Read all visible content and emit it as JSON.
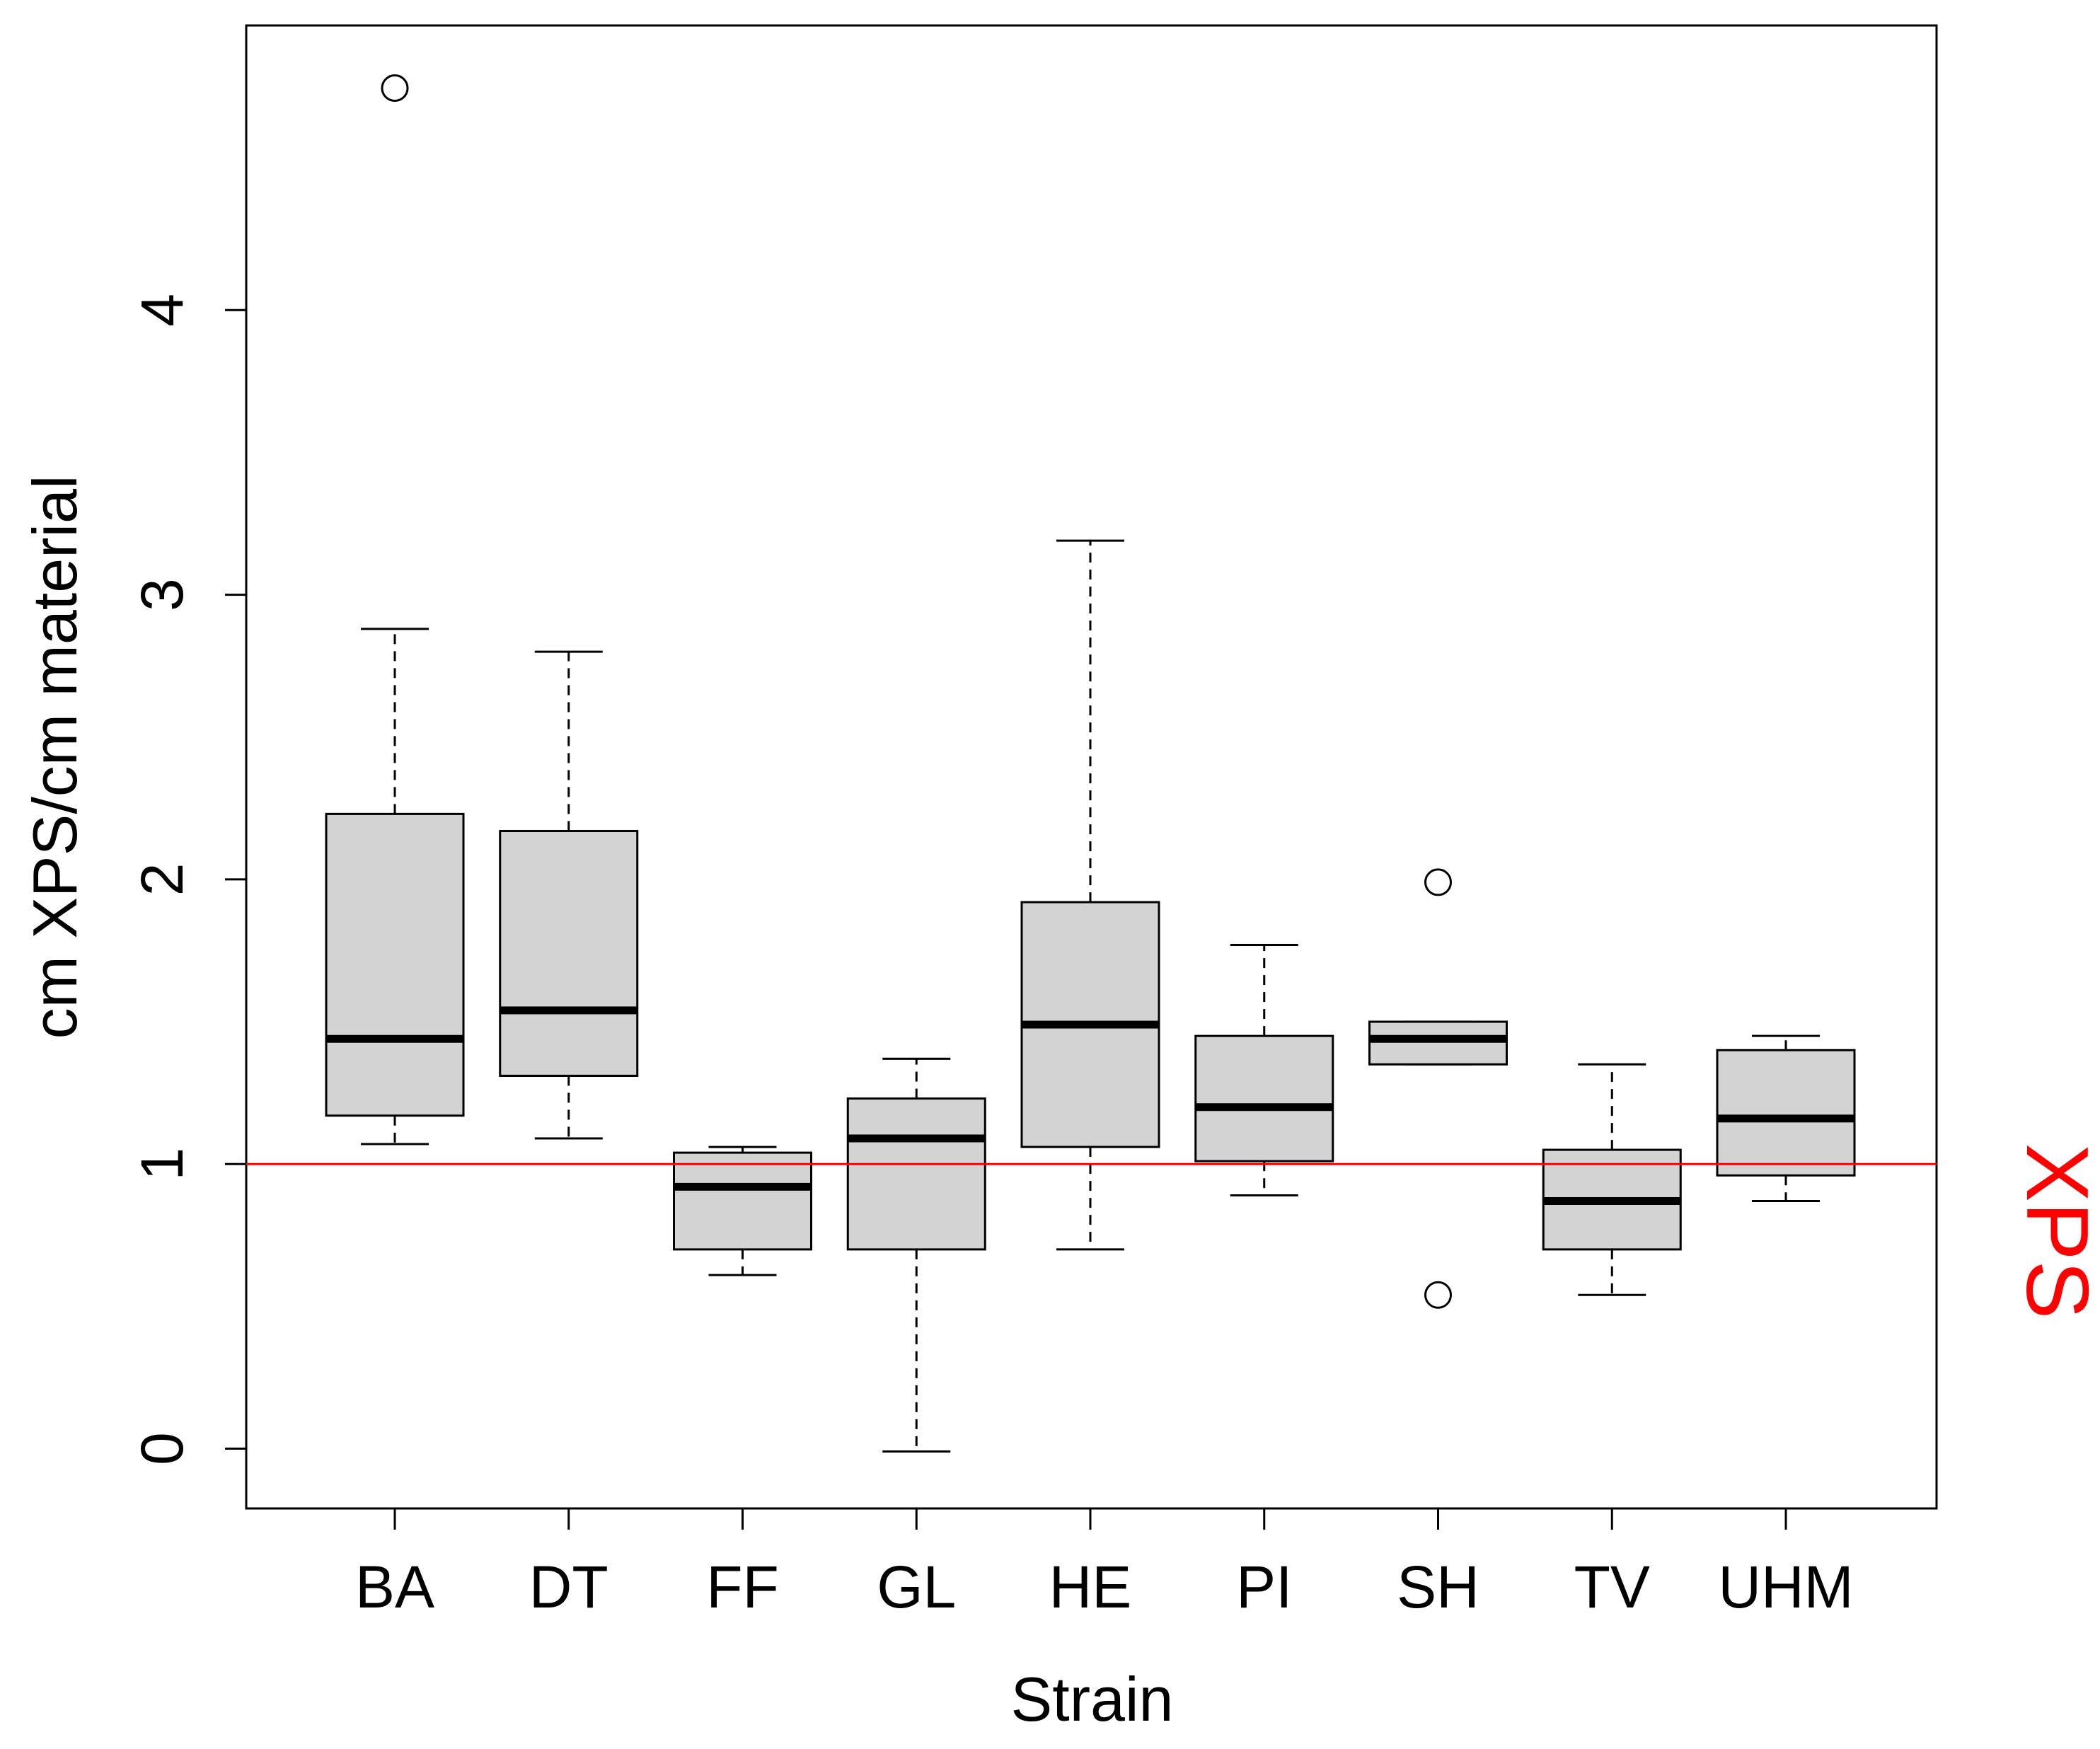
{
  "chart_data": {
    "type": "boxplot",
    "title": "",
    "xlabel": "Strain",
    "ylabel": "cm XPS/cm material",
    "ylim": [
      -0.21,
      5.0
    ],
    "yticks": [
      0,
      1,
      2,
      3,
      4
    ],
    "categories": [
      "BA",
      "DT",
      "FF",
      "GL",
      "HE",
      "PI",
      "SH",
      "TV",
      "UHM"
    ],
    "boxes": [
      {
        "name": "BA",
        "whisker_low": 1.07,
        "q1": 1.17,
        "median": 1.44,
        "q3": 2.23,
        "whisker_high": 2.88,
        "outliers": [
          4.78
        ]
      },
      {
        "name": "DT",
        "whisker_low": 1.09,
        "q1": 1.31,
        "median": 1.54,
        "q3": 2.17,
        "whisker_high": 2.8,
        "outliers": []
      },
      {
        "name": "FF",
        "whisker_low": 0.61,
        "q1": 0.7,
        "median": 0.92,
        "q3": 1.04,
        "whisker_high": 1.06,
        "outliers": []
      },
      {
        "name": "GL",
        "whisker_low": -0.01,
        "q1": 0.7,
        "median": 1.09,
        "q3": 1.23,
        "whisker_high": 1.37,
        "outliers": []
      },
      {
        "name": "HE",
        "whisker_low": 0.7,
        "q1": 1.06,
        "median": 1.49,
        "q3": 1.92,
        "whisker_high": 3.19,
        "outliers": []
      },
      {
        "name": "PI",
        "whisker_low": 0.89,
        "q1": 1.01,
        "median": 1.2,
        "q3": 1.45,
        "whisker_high": 1.77,
        "outliers": []
      },
      {
        "name": "SH",
        "whisker_low": 1.35,
        "q1": 1.35,
        "median": 1.44,
        "q3": 1.5,
        "whisker_high": 1.5,
        "outliers": [
          1.99,
          0.54
        ]
      },
      {
        "name": "TV",
        "whisker_low": 0.54,
        "q1": 0.7,
        "median": 0.87,
        "q3": 1.05,
        "whisker_high": 1.35,
        "outliers": []
      },
      {
        "name": "UHM",
        "whisker_low": 0.87,
        "q1": 0.96,
        "median": 1.16,
        "q3": 1.4,
        "whisker_high": 1.45,
        "outliers": []
      }
    ],
    "reference_line": {
      "y": 1,
      "label": "XPS",
      "color": "#ff0000"
    },
    "colors": {
      "box_fill": "#d3d3d3",
      "stroke": "#000000",
      "background": "#ffffff"
    }
  }
}
